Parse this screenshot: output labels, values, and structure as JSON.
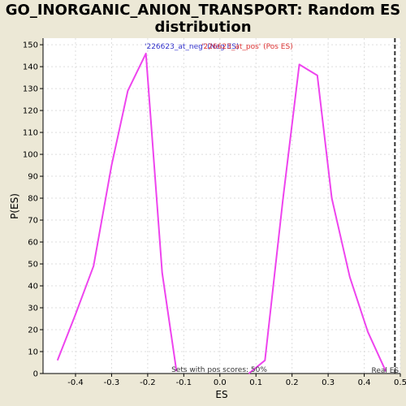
{
  "chart_data": {
    "type": "line",
    "title_lines": [
      "GO_INORGANIC_ANION_TRANSPORT: Random ES",
      "distribution"
    ],
    "xlabel": "ES",
    "ylabel": "P(ES)",
    "xlim": [
      -0.49,
      0.5
    ],
    "ylim": [
      0,
      153
    ],
    "x_ticks": [
      -0.4,
      -0.3,
      -0.2,
      -0.1,
      0.0,
      0.1,
      0.2,
      0.3,
      0.4,
      0.5
    ],
    "x_tick_labels": [
      "-0.4",
      "-0.3",
      "-0.2",
      "-0.1",
      "0.0",
      "0.1",
      "0.2",
      "0.3",
      "0.4",
      "0.5"
    ],
    "y_ticks": [
      0,
      10,
      20,
      30,
      40,
      50,
      60,
      70,
      80,
      90,
      100,
      110,
      120,
      130,
      140,
      150
    ],
    "y_tick_labels": [
      "0",
      "10",
      "20",
      "30",
      "40",
      "50",
      "60",
      "70",
      "80",
      "90",
      "100",
      "110",
      "120",
      "130",
      "140",
      "150"
    ],
    "grid": true,
    "series": [
      {
        "name": "'226623_at_neg' (Neg ES)",
        "color": "#ee44ee",
        "label_color": "#3333cc",
        "points": [
          [
            -0.45,
            6
          ],
          [
            -0.4,
            27
          ],
          [
            -0.35,
            49
          ],
          [
            -0.3,
            95
          ],
          [
            -0.255,
            129
          ],
          [
            -0.205,
            146
          ],
          [
            -0.16,
            46
          ],
          [
            -0.12,
            1
          ]
        ]
      },
      {
        "name": "'226623_at_pos' (Pos ES)",
        "color": "#ee44ee",
        "label_color": "#dd3333",
        "points": [
          [
            0.08,
            0
          ],
          [
            0.125,
            6
          ],
          [
            0.175,
            80
          ],
          [
            0.22,
            141
          ],
          [
            0.27,
            136
          ],
          [
            0.31,
            80
          ],
          [
            0.36,
            44
          ],
          [
            0.41,
            19
          ],
          [
            0.46,
            1
          ]
        ]
      }
    ],
    "real_es": {
      "x": 0.485,
      "label": "Real ES"
    },
    "annotation": "Sets with pos scores: 50%"
  }
}
